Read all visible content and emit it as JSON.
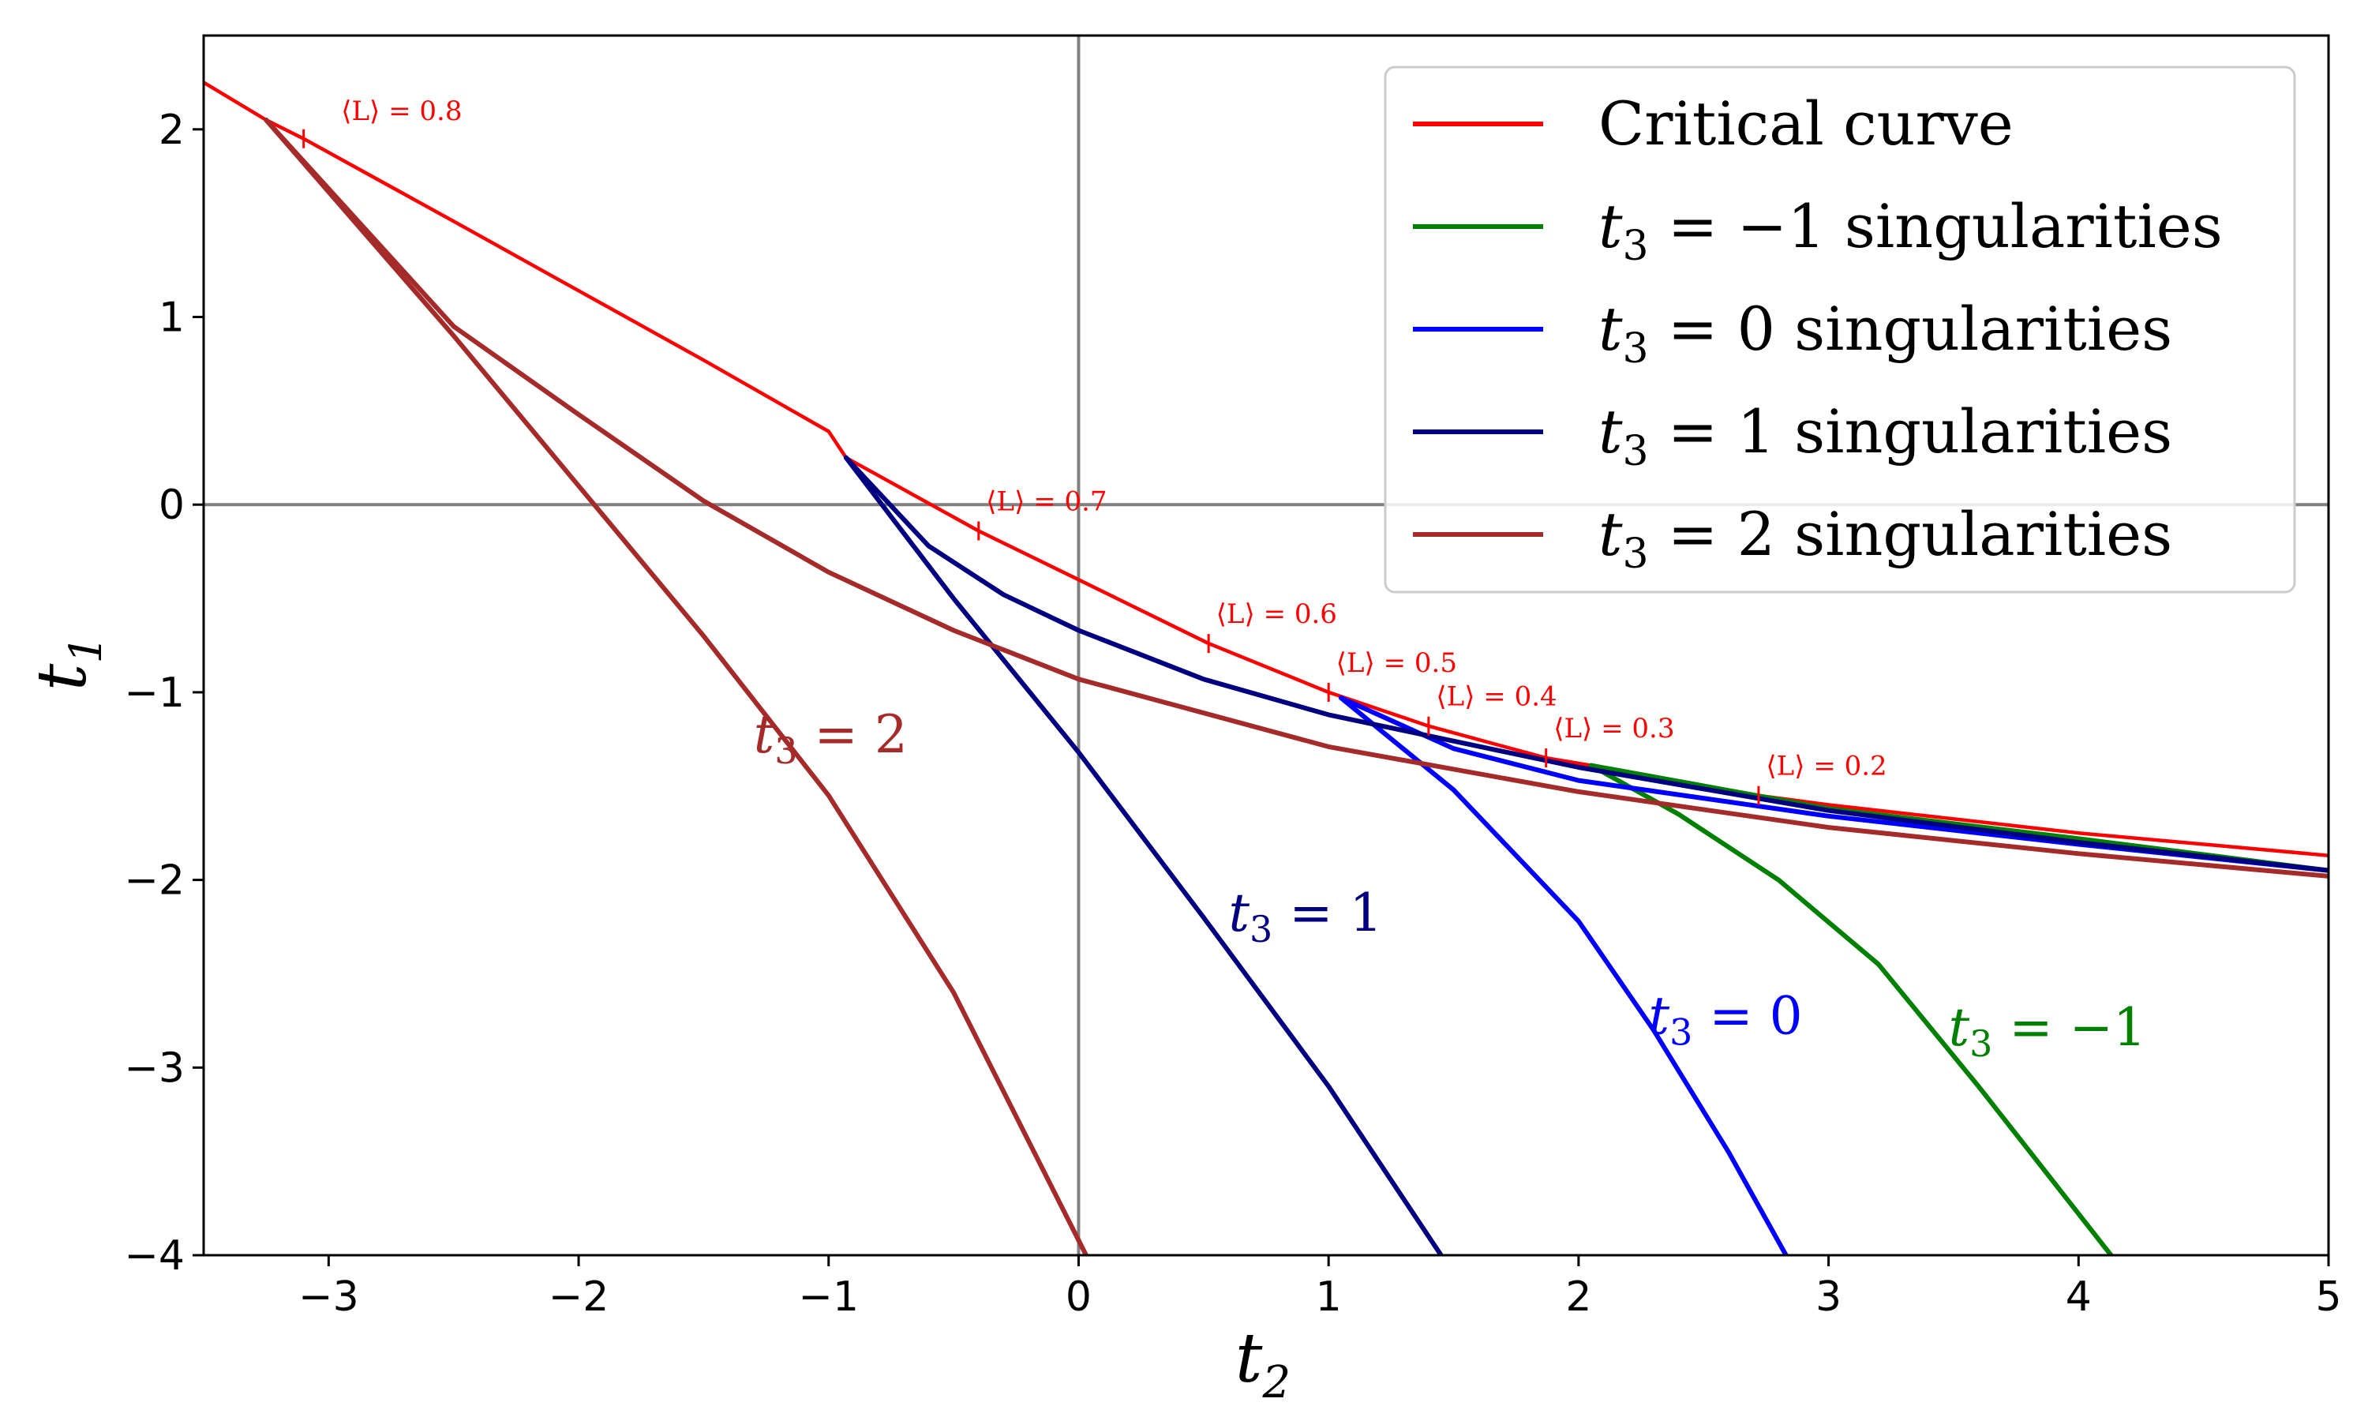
{
  "chart_data": {
    "type": "line",
    "xlabel": "t",
    "xlabel_sub": "2",
    "ylabel": "t",
    "ylabel_sub": "1",
    "xlim": [
      -3.5,
      5
    ],
    "ylim": [
      -4,
      2.5
    ],
    "xticks": [
      -3,
      -2,
      -1,
      0,
      1,
      2,
      3,
      4,
      5
    ],
    "yticks": [
      2,
      1,
      0,
      -1,
      -2,
      -3,
      -4
    ],
    "xtick_labels": [
      "−3",
      "−2",
      "−1",
      "0",
      "1",
      "2",
      "3",
      "4",
      "5"
    ],
    "ytick_labels": [
      "2",
      "1",
      "0",
      "−1",
      "−2",
      "−3",
      "−4"
    ],
    "reference_lines": {
      "x": 0,
      "y": 0,
      "color": "#808080"
    },
    "legend_position": "top-right",
    "legend": [
      {
        "text": "Critical curve",
        "color": "#ff0000"
      },
      {
        "pre": "t",
        "sub": "3",
        "post": " = −1 singularities",
        "color": "#008000"
      },
      {
        "pre": "t",
        "sub": "3",
        "post": " = 0 singularities",
        "color": "#0000ff"
      },
      {
        "pre": "t",
        "sub": "3",
        "post": " = 1 singularities",
        "color": "#000080"
      },
      {
        "pre": "t",
        "sub": "3",
        "post": " = 2 singularities",
        "color": "#a52a2a"
      }
    ],
    "series": [
      {
        "name": "Critical curve",
        "color": "#ff0000",
        "segments": [
          {
            "x": [
              -3.5,
              -3.25,
              -3.1,
              -2.5,
              -2.0,
              -1.5,
              -1.0,
              -0.93,
              -0.4,
              0.0,
              0.52,
              1.0,
              1.4,
              1.87,
              2.05,
              2.72,
              3.0,
              4.0,
              5.0
            ],
            "y": [
              2.25,
              2.05,
              1.95,
              1.51,
              1.14,
              0.77,
              0.39,
              0.25,
              -0.14,
              -0.4,
              -0.74,
              -1.0,
              -1.18,
              -1.35,
              -1.39,
              -1.55,
              -1.6,
              -1.75,
              -1.87
            ]
          }
        ]
      },
      {
        "name": "t3 = −1 singularities",
        "color": "#008000",
        "segments": [
          {
            "x": [
              2.05,
              3.0,
              4.0,
              5.0
            ],
            "y": [
              -1.39,
              -1.62,
              -1.78,
              -1.95
            ]
          },
          {
            "x": [
              2.05,
              2.4,
              2.8,
              3.2,
              3.6,
              4.13
            ],
            "y": [
              -1.39,
              -1.65,
              -2.0,
              -2.45,
              -3.1,
              -4.0
            ]
          }
        ]
      },
      {
        "name": "t3 = 0 singularities",
        "color": "#0000ff",
        "segments": [
          {
            "x": [
              1.05,
              1.5,
              2.0,
              3.0,
              4.0,
              5.0
            ],
            "y": [
              -1.03,
              -1.3,
              -1.47,
              -1.66,
              -1.81,
              -1.95
            ]
          },
          {
            "x": [
              1.05,
              1.5,
              2.0,
              2.3,
              2.6,
              2.83
            ],
            "y": [
              -1.03,
              -1.52,
              -2.22,
              -2.8,
              -3.45,
              -4.0
            ]
          }
        ]
      },
      {
        "name": "t3 = 1 singularities",
        "color": "#000080",
        "segments": [
          {
            "x": [
              -0.93,
              -0.6,
              -0.3,
              0.0,
              0.5,
              1.0,
              2.0,
              3.0,
              4.0,
              5.0
            ],
            "y": [
              0.25,
              -0.22,
              -0.48,
              -0.67,
              -0.93,
              -1.12,
              -1.4,
              -1.63,
              -1.8,
              -1.95
            ]
          },
          {
            "x": [
              -0.93,
              -0.5,
              0.0,
              0.5,
              1.0,
              1.45
            ],
            "y": [
              0.25,
              -0.5,
              -1.32,
              -2.2,
              -3.1,
              -4.0
            ]
          }
        ]
      },
      {
        "name": "t3 = 2 singularities",
        "color": "#a52a2a",
        "segments": [
          {
            "x": [
              -3.25,
              -2.5,
              -2.0,
              -1.5,
              -1.0,
              -0.5,
              0.0,
              1.0,
              2.0,
              3.0,
              4.0,
              5.0
            ],
            "y": [
              2.05,
              0.95,
              0.48,
              0.02,
              -0.36,
              -0.67,
              -0.93,
              -1.29,
              -1.53,
              -1.72,
              -1.86,
              -1.98
            ]
          },
          {
            "x": [
              -3.25,
              -2.5,
              -2.0,
              -1.5,
              -1.0,
              -0.5,
              0.03
            ],
            "y": [
              2.05,
              0.9,
              0.1,
              -0.7,
              -1.55,
              -2.6,
              -4.0
            ]
          }
        ]
      }
    ],
    "curve_labels": [
      {
        "pre": "t",
        "sub": "3",
        "post": " = 2",
        "x": -1.3,
        "y": -1.32,
        "color": "#a52a2a"
      },
      {
        "pre": "t",
        "sub": "3",
        "post": " = 1",
        "x": 0.6,
        "y": -2.27,
        "color": "#000080"
      },
      {
        "pre": "t",
        "sub": "3",
        "post": " = 0",
        "x": 2.28,
        "y": -2.82,
        "color": "#0000ff"
      },
      {
        "pre": "t",
        "sub": "3",
        "post": " = −1",
        "x": 3.48,
        "y": -2.88,
        "color": "#008000"
      }
    ],
    "markers": [
      {
        "text": "⟨L⟩ = 0.8",
        "x": -3.1,
        "y": 1.95,
        "label_x": -2.95,
        "label_y": 2.05
      },
      {
        "text": "⟨L⟩ = 0.7",
        "x": -0.4,
        "y": -0.14,
        "label_x": -0.37,
        "label_y": -0.03
      },
      {
        "text": "⟨L⟩ = 0.6",
        "x": 0.52,
        "y": -0.74,
        "label_x": 0.55,
        "label_y": -0.63
      },
      {
        "text": "⟨L⟩ = 0.5",
        "x": 1.0,
        "y": -1.0,
        "label_x": 1.03,
        "label_y": -0.89
      },
      {
        "text": "⟨L⟩ = 0.4",
        "x": 1.4,
        "y": -1.18,
        "label_x": 1.43,
        "label_y": -1.07
      },
      {
        "text": "⟨L⟩ = 0.3",
        "x": 1.87,
        "y": -1.35,
        "label_x": 1.9,
        "label_y": -1.24
      },
      {
        "text": "⟨L⟩ = 0.2",
        "x": 2.72,
        "y": -1.55,
        "label_x": 2.75,
        "label_y": -1.44
      }
    ]
  }
}
